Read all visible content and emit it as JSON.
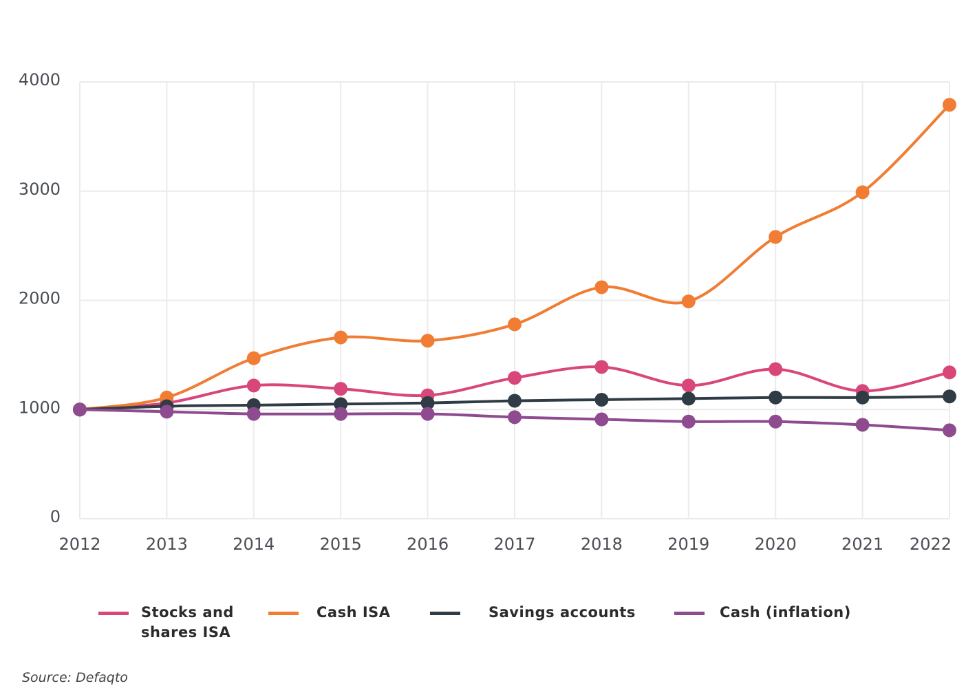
{
  "chart_data": {
    "type": "line",
    "categories": [
      "2012",
      "2013",
      "2014",
      "2015",
      "2016",
      "2017",
      "2018",
      "2019",
      "2020",
      "2021",
      "2022"
    ],
    "series": [
      {
        "name": "Stocks and shares ISA",
        "color": "#d9467a",
        "values": [
          1000,
          1060,
          1220,
          1190,
          1130,
          1290,
          1390,
          1220,
          1370,
          1170,
          1340
        ]
      },
      {
        "name": "Cash ISA",
        "color": "#f07d33",
        "values": [
          1000,
          1110,
          1470,
          1660,
          1630,
          1780,
          2120,
          1990,
          2580,
          2990,
          3790
        ]
      },
      {
        "name": "Savings accounts",
        "color": "#2f3c45",
        "values": [
          1000,
          1030,
          1040,
          1050,
          1060,
          1080,
          1090,
          1100,
          1110,
          1110,
          1120
        ]
      },
      {
        "name": "Cash (inflation)",
        "color": "#8e4b8f",
        "values": [
          1000,
          980,
          960,
          960,
          960,
          930,
          910,
          890,
          890,
          860,
          810
        ]
      }
    ],
    "ylim": [
      0,
      4000
    ],
    "yticks": [
      0,
      1000,
      2000,
      3000,
      4000
    ],
    "grid": true,
    "source": "Source: Defaqto"
  }
}
